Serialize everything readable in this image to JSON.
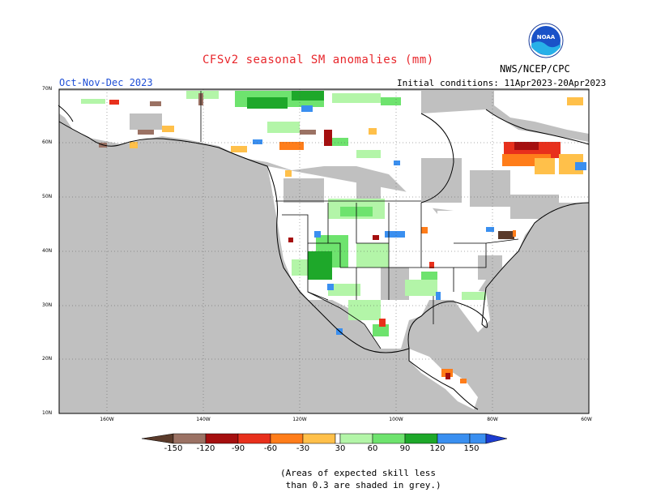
{
  "title": "CFSv2 seasonal SM anomalies (mm)",
  "period": "Oct-Nov-Dec 2023",
  "initial_conditions": "Initial conditions: 11Apr2023-20Apr2023",
  "agency": "NWS/NCEP/CPC",
  "logo_text": "NOAA",
  "latitude_labels": [
    "70N",
    "60N",
    "50N",
    "40N",
    "30N",
    "20N",
    "10N"
  ],
  "longitude_labels": [
    "160W",
    "140W",
    "120W",
    "100W",
    "80W",
    "60W"
  ],
  "colorbar": {
    "labels": [
      "-150",
      "-120",
      "-90",
      "-60",
      "-30",
      "30",
      "60",
      "90",
      "120",
      "150"
    ],
    "colors": {
      "lt_neg150": "#5a3a2a",
      "neg150_neg120": "#9b7264",
      "neg120_neg90": "#a50f0f",
      "neg90_neg60": "#e8301c",
      "neg60_neg30": "#ff7d1a",
      "neg30_0": "#ffc04a",
      "neutral": "#ffffff",
      "pos30_60": "#b3f5a8",
      "pos60_90": "#6ee36e",
      "pos90_120": "#1ea82a",
      "pos120_150": "#3a8ff0",
      "gt_150": "#1c3cd0"
    }
  },
  "skill_mask_color": "#c0c0c0",
  "note": "(Areas of expected skill less\n than 0.3 are shaded in grey.)"
}
